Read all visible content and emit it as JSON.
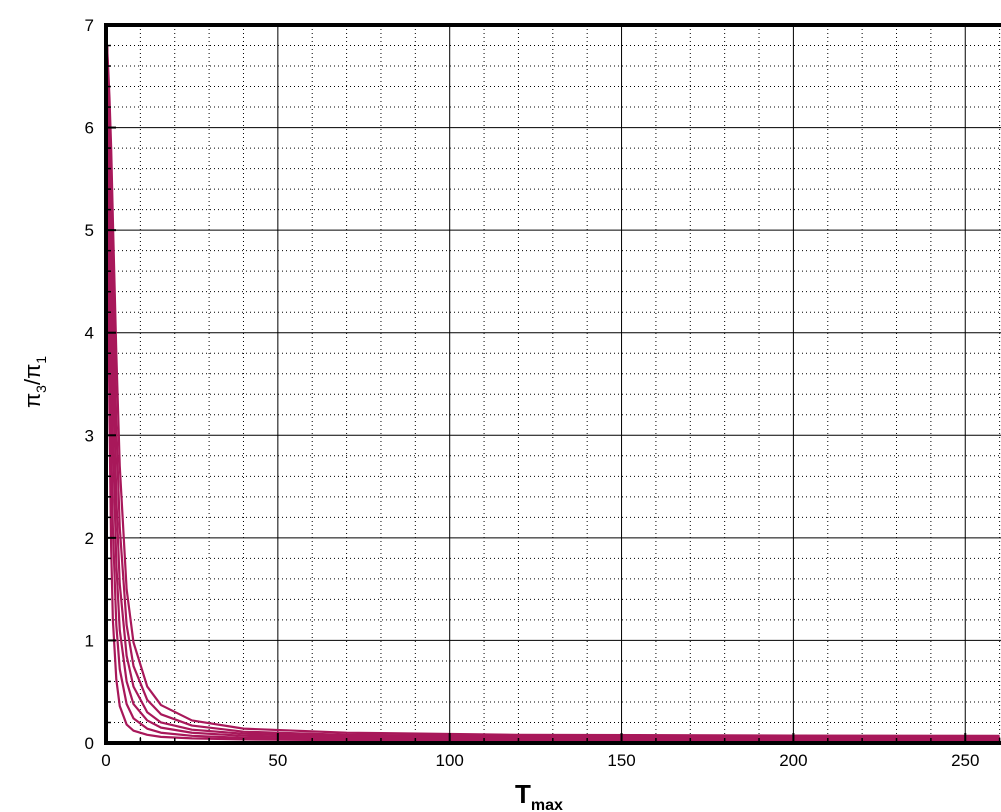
{
  "chart_data": {
    "type": "line",
    "title": "",
    "xlabel": {
      "main": "T",
      "sub": "max"
    },
    "ylabel": {
      "p1": "π",
      "s1": "3",
      "mid": "/π",
      "s2": "1"
    },
    "xlim": [
      0,
      260
    ],
    "ylim": [
      0,
      7
    ],
    "x_ticks": [
      0,
      50,
      100,
      150,
      200,
      250
    ],
    "y_ticks": [
      0,
      1,
      2,
      3,
      4,
      5,
      6,
      7
    ],
    "x_minor_step": 10,
    "y_minor_step": 0.2,
    "grid": {
      "major": true,
      "minor": true,
      "minor_style": "dotted"
    },
    "legend": "none",
    "series_color": "#a8185a",
    "series": [
      {
        "x": [
          0.3,
          0.6,
          1,
          1.5,
          2,
          3,
          4,
          6,
          8,
          12,
          16,
          25,
          40,
          70,
          120,
          200,
          260
        ],
        "y": [
          6.8,
          4.9,
          3.2,
          1.9,
          1.2,
          0.62,
          0.36,
          0.18,
          0.12,
          0.08,
          0.06,
          0.045,
          0.035,
          0.028,
          0.024,
          0.022,
          0.02
        ]
      },
      {
        "x": [
          0.3,
          0.6,
          1,
          1.5,
          2,
          3,
          4,
          6,
          8,
          12,
          16,
          25,
          40,
          70,
          120,
          200,
          260
        ],
        "y": [
          6.8,
          5.6,
          4.3,
          3.0,
          2.1,
          1.15,
          0.72,
          0.38,
          0.24,
          0.14,
          0.1,
          0.07,
          0.05,
          0.04,
          0.034,
          0.03,
          0.028
        ]
      },
      {
        "x": [
          0.3,
          0.6,
          1,
          1.5,
          2,
          3,
          4,
          6,
          8,
          12,
          16,
          25,
          40,
          70,
          120,
          200,
          260
        ],
        "y": [
          6.8,
          6.0,
          5.1,
          4.0,
          3.0,
          1.75,
          1.1,
          0.6,
          0.38,
          0.22,
          0.15,
          0.1,
          0.07,
          0.055,
          0.045,
          0.04,
          0.038
        ]
      },
      {
        "x": [
          0.3,
          0.6,
          1,
          1.5,
          2,
          3,
          4,
          6,
          8,
          12,
          16,
          25,
          40,
          70,
          120,
          200,
          260
        ],
        "y": [
          6.8,
          6.3,
          5.6,
          4.7,
          3.8,
          2.4,
          1.55,
          0.85,
          0.55,
          0.3,
          0.2,
          0.13,
          0.09,
          0.07,
          0.058,
          0.052,
          0.05
        ]
      },
      {
        "x": [
          0.3,
          0.6,
          1,
          1.5,
          2,
          3,
          4,
          6,
          8,
          12,
          16,
          25,
          40,
          70,
          120,
          200,
          260
        ],
        "y": [
          6.8,
          6.5,
          6.0,
          5.3,
          4.5,
          3.1,
          2.1,
          1.15,
          0.75,
          0.42,
          0.28,
          0.17,
          0.11,
          0.08,
          0.066,
          0.06,
          0.058
        ]
      },
      {
        "x": [
          0.3,
          0.6,
          1,
          1.5,
          2,
          3,
          4,
          6,
          8,
          12,
          16,
          25,
          40,
          70,
          120,
          200,
          260
        ],
        "y": [
          6.8,
          6.6,
          6.3,
          5.8,
          5.1,
          3.8,
          2.7,
          1.5,
          0.98,
          0.55,
          0.37,
          0.22,
          0.14,
          0.1,
          0.08,
          0.072,
          0.07
        ]
      }
    ]
  }
}
